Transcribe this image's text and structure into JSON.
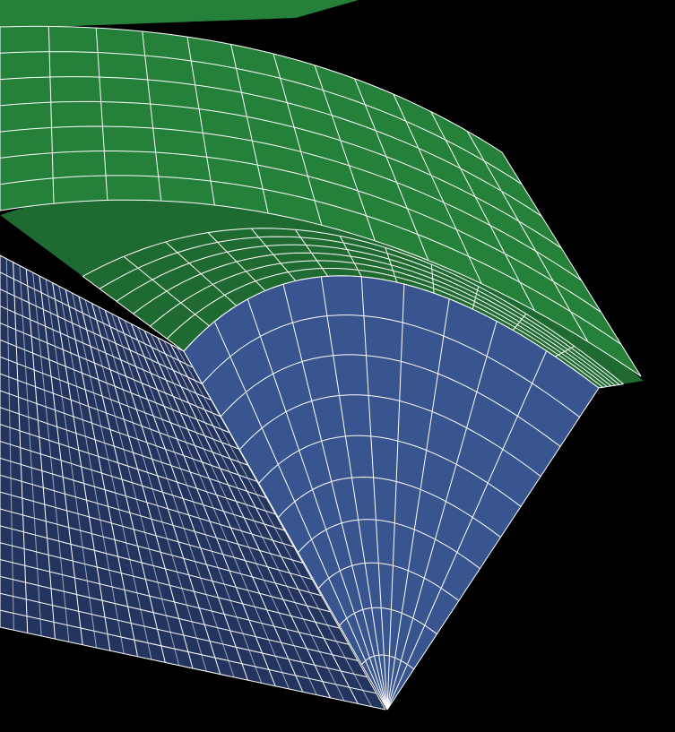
{
  "viewport": {
    "background": "#000000"
  },
  "model": {
    "parts": [
      {
        "name": "cap",
        "color": "#25803a"
      },
      {
        "name": "fillet-band",
        "color": "#1f6a30"
      },
      {
        "name": "end-face",
        "color": "#38558f"
      },
      {
        "name": "side-face",
        "color": "#23345e"
      }
    ],
    "mesh_line_color": "#ffffff"
  }
}
